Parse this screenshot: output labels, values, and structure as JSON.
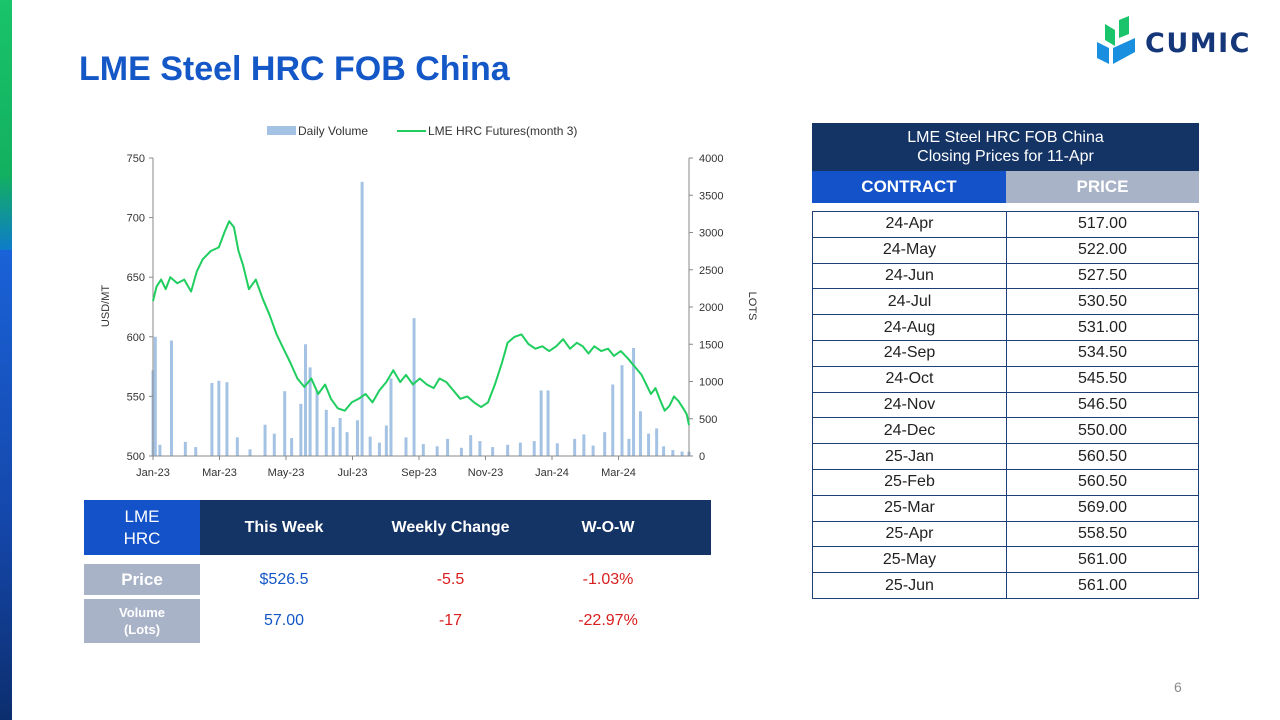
{
  "page": {
    "title": "LME Steel HRC FOB China",
    "page_number": "6",
    "logo_text": "CUMIC"
  },
  "colors": {
    "title_blue": "#1457c7",
    "navy": "#153466",
    "contract_blue": "#1452c9",
    "price_gray": "#a9b3c8",
    "futures_line": "#1fce5e",
    "volume_bar": "#a4c3e4",
    "negative_red": "#d81e1e"
  },
  "chart_data": {
    "type": "bar+line",
    "legend_position": "top-center",
    "legend": [
      "Daily Volume",
      "LME HRC Futures(month 3)"
    ],
    "x_tick_labels": [
      "Jan-23",
      "Mar-23",
      "May-23",
      "Jul-23",
      "Sep-23",
      "Nov-23",
      "Jan-24",
      "Mar-24"
    ],
    "y_left": {
      "label": "USD/MT",
      "range": [
        500,
        750
      ],
      "ticks": [
        "750",
        "700",
        "650",
        "600",
        "550",
        "500"
      ]
    },
    "y_right": {
      "label": "LOTS",
      "range": [
        0,
        4000
      ],
      "ticks": [
        "4000",
        "3500",
        "3000",
        "2500",
        "2000",
        "1500",
        "1000",
        "500",
        "0"
      ]
    },
    "date_range": [
      "2023-01-03",
      "2024-04-11"
    ],
    "futures_series": {
      "name": "LME HRC Futures(month 3)",
      "points": [
        [
          "2023-01-03",
          630
        ],
        [
          "2023-01-06",
          642
        ],
        [
          "2023-01-10",
          648
        ],
        [
          "2023-01-14",
          640
        ],
        [
          "2023-01-18",
          650
        ],
        [
          "2023-01-24",
          645
        ],
        [
          "2023-01-30",
          648
        ],
        [
          "2023-02-05",
          638
        ],
        [
          "2023-02-10",
          655
        ],
        [
          "2023-02-15",
          665
        ],
        [
          "2023-02-22",
          672
        ],
        [
          "2023-03-01",
          675
        ],
        [
          "2023-03-06",
          688
        ],
        [
          "2023-03-10",
          697
        ],
        [
          "2023-03-14",
          692
        ],
        [
          "2023-03-18",
          672
        ],
        [
          "2023-03-22",
          660
        ],
        [
          "2023-03-27",
          640
        ],
        [
          "2023-04-02",
          648
        ],
        [
          "2023-04-08",
          632
        ],
        [
          "2023-04-14",
          618
        ],
        [
          "2023-04-20",
          602
        ],
        [
          "2023-04-26",
          590
        ],
        [
          "2023-05-02",
          578
        ],
        [
          "2023-05-08",
          565
        ],
        [
          "2023-05-14",
          558
        ],
        [
          "2023-05-20",
          565
        ],
        [
          "2023-05-26",
          552
        ],
        [
          "2023-06-01",
          560
        ],
        [
          "2023-06-06",
          548
        ],
        [
          "2023-06-12",
          540
        ],
        [
          "2023-06-18",
          538
        ],
        [
          "2023-06-24",
          545
        ],
        [
          "2023-06-30",
          548
        ],
        [
          "2023-07-06",
          552
        ],
        [
          "2023-07-12",
          545
        ],
        [
          "2023-07-18",
          555
        ],
        [
          "2023-07-24",
          562
        ],
        [
          "2023-07-30",
          572
        ],
        [
          "2023-08-05",
          562
        ],
        [
          "2023-08-10",
          568
        ],
        [
          "2023-08-16",
          560
        ],
        [
          "2023-08-22",
          565
        ],
        [
          "2023-08-28",
          560
        ],
        [
          "2023-09-03",
          557
        ],
        [
          "2023-09-08",
          565
        ],
        [
          "2023-09-14",
          562
        ],
        [
          "2023-09-20",
          555
        ],
        [
          "2023-09-26",
          548
        ],
        [
          "2023-10-02",
          550
        ],
        [
          "2023-10-08",
          545
        ],
        [
          "2023-10-14",
          541
        ],
        [
          "2023-10-20",
          545
        ],
        [
          "2023-10-26",
          560
        ],
        [
          "2023-11-01",
          578
        ],
        [
          "2023-11-06",
          595
        ],
        [
          "2023-11-12",
          600
        ],
        [
          "2023-11-18",
          602
        ],
        [
          "2023-11-24",
          594
        ],
        [
          "2023-11-30",
          590
        ],
        [
          "2023-12-06",
          592
        ],
        [
          "2023-12-12",
          588
        ],
        [
          "2023-12-18",
          592
        ],
        [
          "2023-12-24",
          598
        ],
        [
          "2023-12-30",
          590
        ],
        [
          "2024-01-05",
          595
        ],
        [
          "2024-01-10",
          592
        ],
        [
          "2024-01-15",
          586
        ],
        [
          "2024-01-20",
          592
        ],
        [
          "2024-01-26",
          588
        ],
        [
          "2024-02-01",
          590
        ],
        [
          "2024-02-06",
          584
        ],
        [
          "2024-02-12",
          588
        ],
        [
          "2024-02-18",
          582
        ],
        [
          "2024-02-24",
          575
        ],
        [
          "2024-03-01",
          568
        ],
        [
          "2024-03-05",
          560
        ],
        [
          "2024-03-09",
          552
        ],
        [
          "2024-03-13",
          557
        ],
        [
          "2024-03-17",
          547
        ],
        [
          "2024-03-21",
          538
        ],
        [
          "2024-03-25",
          542
        ],
        [
          "2024-03-29",
          550
        ],
        [
          "2024-04-02",
          546
        ],
        [
          "2024-04-06",
          540
        ],
        [
          "2024-04-09",
          535
        ],
        [
          "2024-04-11",
          526
        ]
      ]
    },
    "volume_series": {
      "name": "Daily Volume",
      "points": [
        [
          "2023-01-03",
          1150
        ],
        [
          "2023-01-05",
          1600
        ],
        [
          "2023-01-09",
          150
        ],
        [
          "2023-01-19",
          1550
        ],
        [
          "2023-01-31",
          190
        ],
        [
          "2023-02-09",
          120
        ],
        [
          "2023-02-23",
          980
        ],
        [
          "2023-03-01",
          1010
        ],
        [
          "2023-03-08",
          990
        ],
        [
          "2023-03-17",
          250
        ],
        [
          "2023-03-28",
          90
        ],
        [
          "2023-04-10",
          420
        ],
        [
          "2023-04-18",
          300
        ],
        [
          "2023-04-27",
          870
        ],
        [
          "2023-05-03",
          240
        ],
        [
          "2023-05-11",
          700
        ],
        [
          "2023-05-15",
          1500
        ],
        [
          "2023-05-19",
          1190
        ],
        [
          "2023-05-25",
          880
        ],
        [
          "2023-06-02",
          620
        ],
        [
          "2023-06-08",
          390
        ],
        [
          "2023-06-14",
          510
        ],
        [
          "2023-06-20",
          320
        ],
        [
          "2023-06-29",
          480
        ],
        [
          "2023-07-03",
          3680
        ],
        [
          "2023-07-10",
          260
        ],
        [
          "2023-07-18",
          180
        ],
        [
          "2023-07-24",
          410
        ],
        [
          "2023-07-28",
          1040
        ],
        [
          "2023-08-10",
          250
        ],
        [
          "2023-08-17",
          1850
        ],
        [
          "2023-08-25",
          160
        ],
        [
          "2023-09-06",
          130
        ],
        [
          "2023-09-15",
          230
        ],
        [
          "2023-09-27",
          110
        ],
        [
          "2023-10-05",
          280
        ],
        [
          "2023-10-13",
          200
        ],
        [
          "2023-10-24",
          120
        ],
        [
          "2023-11-06",
          150
        ],
        [
          "2023-11-17",
          180
        ],
        [
          "2023-11-29",
          200
        ],
        [
          "2023-12-05",
          880
        ],
        [
          "2023-12-11",
          880
        ],
        [
          "2023-12-19",
          170
        ],
        [
          "2024-01-03",
          230
        ],
        [
          "2024-01-11",
          290
        ],
        [
          "2024-01-19",
          140
        ],
        [
          "2024-01-29",
          320
        ],
        [
          "2024-02-05",
          960
        ],
        [
          "2024-02-13",
          1220
        ],
        [
          "2024-02-19",
          230
        ],
        [
          "2024-02-23",
          1450
        ],
        [
          "2024-02-29",
          600
        ],
        [
          "2024-03-07",
          300
        ],
        [
          "2024-03-14",
          370
        ],
        [
          "2024-03-20",
          130
        ],
        [
          "2024-03-28",
          80
        ],
        [
          "2024-04-05",
          60
        ],
        [
          "2024-04-11",
          57
        ]
      ]
    }
  },
  "summary": {
    "corner_label": "LME\nHRC",
    "headers": [
      "This Week",
      "Weekly Change",
      "W-O-W"
    ],
    "rows": [
      {
        "label": "Price",
        "values": [
          "$526.5",
          "-5.5",
          "-1.03%"
        ]
      },
      {
        "label": "Volume\n(Lots)",
        "values": [
          "57.00",
          "-17",
          "-22.97%"
        ]
      }
    ]
  },
  "contracts": {
    "caption_line1": "LME Steel HRC FOB China",
    "caption_line2": "Closing Prices for 11-Apr",
    "header_contract": "CONTRACT",
    "header_price": "PRICE",
    "rows": [
      [
        "24-Apr",
        "517.00"
      ],
      [
        "24-May",
        "522.00"
      ],
      [
        "24-Jun",
        "527.50"
      ],
      [
        "24-Jul",
        "530.50"
      ],
      [
        "24-Aug",
        "531.00"
      ],
      [
        "24-Sep",
        "534.50"
      ],
      [
        "24-Oct",
        "545.50"
      ],
      [
        "24-Nov",
        "546.50"
      ],
      [
        "24-Dec",
        "550.00"
      ],
      [
        "25-Jan",
        "560.50"
      ],
      [
        "25-Feb",
        "560.50"
      ],
      [
        "25-Mar",
        "569.00"
      ],
      [
        "25-Apr",
        "558.50"
      ],
      [
        "25-May",
        "561.00"
      ],
      [
        "25-Jun",
        "561.00"
      ]
    ]
  }
}
